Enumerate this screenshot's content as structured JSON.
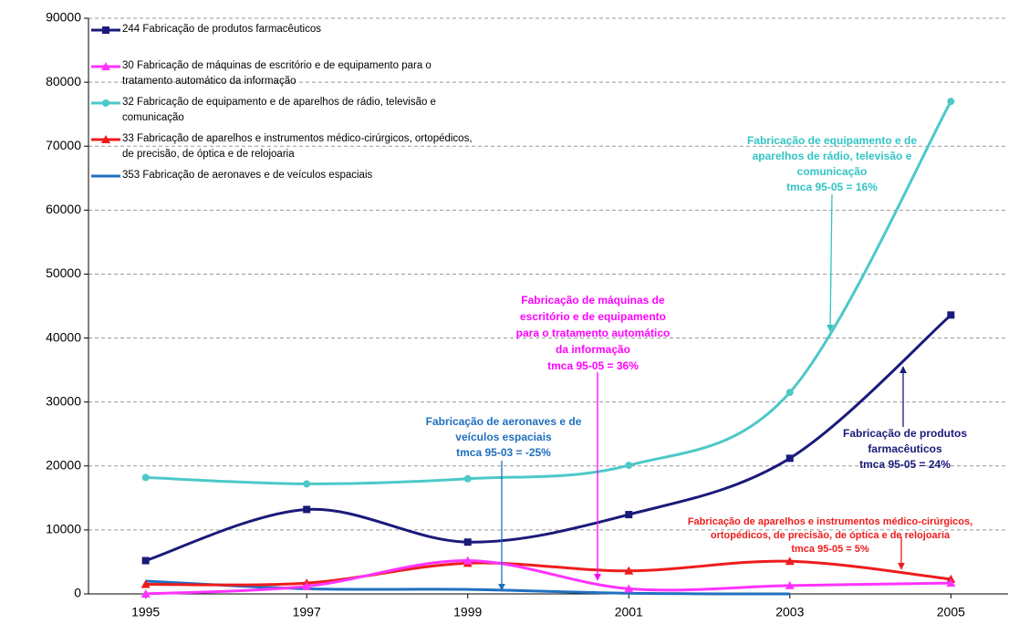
{
  "chart_data": {
    "type": "line",
    "x": [
      1995,
      1997,
      1999,
      2001,
      2003,
      2005
    ],
    "xlim": [
      1994.29,
      2005.71
    ],
    "xticks": [
      1995,
      1997,
      1999,
      2001,
      2003,
      2005
    ],
    "ylim": [
      0,
      90000
    ],
    "yticks": [
      0,
      10000,
      20000,
      30000,
      40000,
      50000,
      60000,
      70000,
      80000,
      90000
    ],
    "grid": true,
    "legend": "upper left",
    "series": [
      {
        "name": "244 Fabricação de produtos farmacêuticos",
        "color": "#1a1a7a",
        "marker": "square",
        "values": [
          5200,
          13200,
          8100,
          12400,
          21200,
          43600
        ]
      },
      {
        "name": "30 Fabricação de máquinas de escritório e de equipamento para o tratamento automático da informação",
        "color": "#ff33ff",
        "marker": "triangle",
        "values": [
          0,
          1200,
          5200,
          800,
          1300,
          1700
        ]
      },
      {
        "name": "32 Fabricação de equipamento e de aparelhos de rádio, televisão e comunicação",
        "color": "#4cc8c8",
        "marker": "circle",
        "values": [
          18200,
          17200,
          18000,
          20100,
          31500,
          77000
        ]
      },
      {
        "name": "33 Fabricação de aparelhos e instrumentos médico-cirúrgicos, ortopédicos, de precisão, de óptica e de relojoaria",
        "color": "#ee1c1c",
        "marker": "triangle",
        "values": [
          1500,
          1700,
          4800,
          3600,
          5100,
          2300
        ]
      },
      {
        "name": "353 Fabricação de aeronaves e de veículos espaciais",
        "color": "#2070c0",
        "marker": "none",
        "values": [
          2000,
          800,
          700,
          100,
          0,
          null
        ]
      }
    ],
    "annotations": [
      {
        "lines": [
          "Fabricação de equipamento e de",
          "aparelhos de rádio, televisão e",
          "comunicação",
          "tmca 95-05 = 16%"
        ],
        "color": "#33c4c4"
      },
      {
        "lines": [
          "Fabricação de máquinas de",
          "escritório e de equipamento",
          "para o tratamento automático",
          "da informação",
          "tmca 95-05 = 36%"
        ],
        "color": "#ff00ff"
      },
      {
        "lines": [
          "Fabricação de aeronaves e de",
          "veículos espaciais",
          "tmca 95-03 = -25%"
        ],
        "color": "#1f6fbf"
      },
      {
        "lines": [
          "Fabricação de produtos",
          "farmacêuticos",
          "tmca 95-05 = 24%"
        ],
        "color": "#1a1a7a"
      },
      {
        "lines": [
          "Fabricação de aparelhos e instrumentos médico-cirúrgicos,",
          "ortopédicos, de precisão, de óptica e de relojoaria",
          "tmca 95-05 = 5%"
        ],
        "color": "#ee1c1c"
      }
    ]
  }
}
